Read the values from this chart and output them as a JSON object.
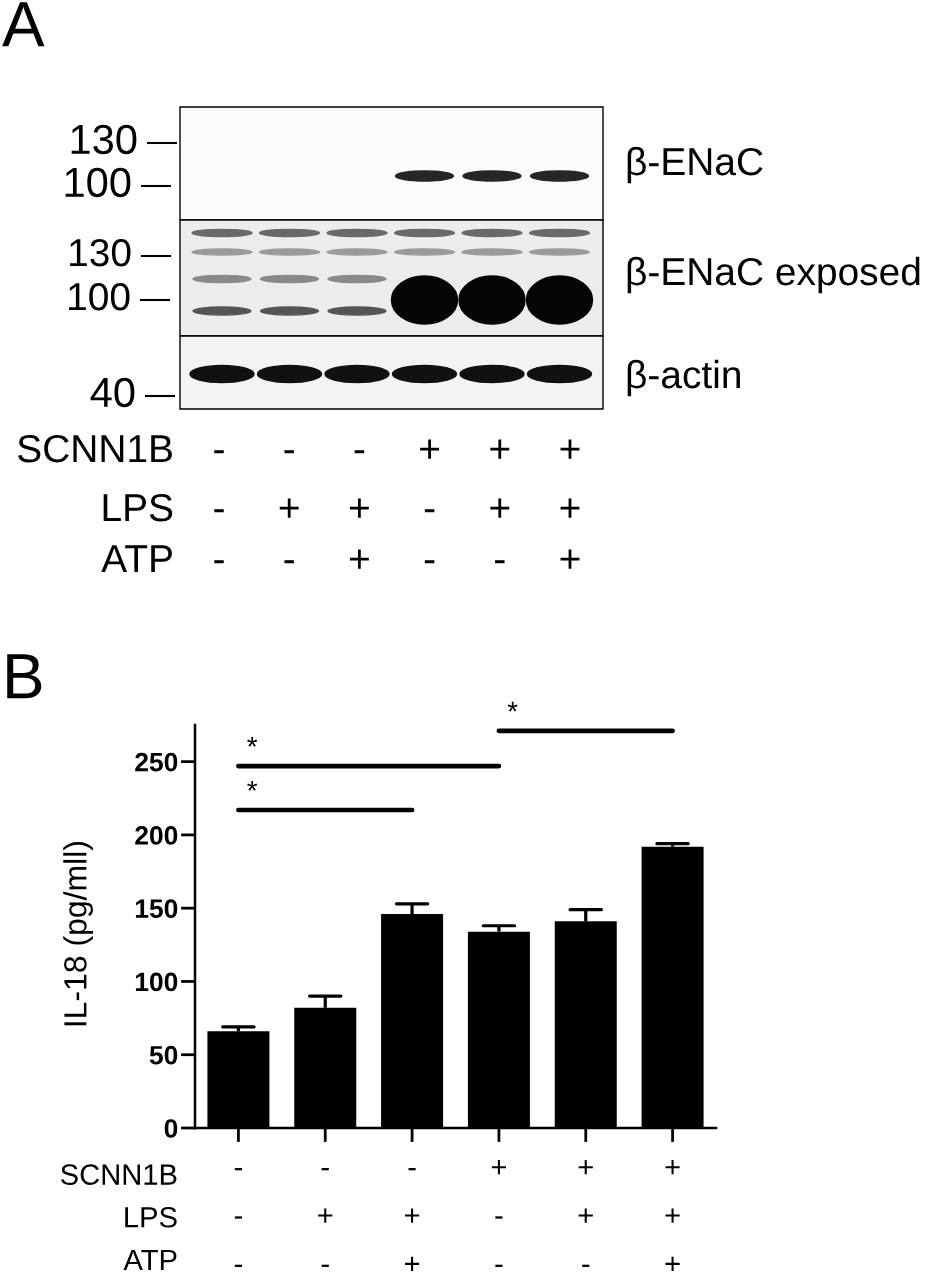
{
  "chart_data": [
    {
      "type": "other",
      "title": "A",
      "annotations": [
        "130",
        "100",
        "130",
        "100",
        "40",
        "β-ENaC",
        "β-ENaC exposed",
        "β-actin",
        "SCNN1B",
        "-",
        "-",
        "-",
        "+",
        "+",
        "+",
        "LPS",
        "-",
        "+",
        "+",
        "-",
        "+",
        "+",
        "ATP",
        "-",
        "-",
        "+",
        "-",
        "-",
        "+"
      ]
    },
    {
      "type": "bar",
      "title": "B",
      "ylabel": "IL-18 (pg/mll)",
      "categories": [
        "-\n-\n-",
        "-\n+\n-",
        "-\n+\n+",
        "+\n-\n-",
        "+\n+\n-",
        "+\n+\n+"
      ],
      "ylim": [
        0,
        275
      ],
      "yticks": [
        0,
        50,
        100,
        150,
        200,
        250
      ],
      "series": [
        {
          "type": "bar",
          "color": "#000000",
          "values": [
            66,
            82,
            146,
            134,
            141,
            192
          ],
          "errors": [
            [
              66,
              69
            ],
            [
              82,
              90
            ],
            [
              146,
              153
            ],
            [
              134,
              138
            ],
            [
              141,
              149
            ],
            [
              192,
              194
            ]
          ]
        },
        {
          "type": "line",
          "name": "*",
          "color": "#000000",
          "values": [
            247,
            247,
            247,
            247,
            null,
            null
          ]
        },
        {
          "type": "line",
          "name": "*",
          "color": "#000000",
          "values": [
            217,
            217,
            217,
            null,
            null,
            null
          ]
        },
        {
          "type": "line",
          "name": "*",
          "color": "#000000",
          "values": [
            null,
            null,
            null,
            271,
            271,
            271
          ]
        }
      ],
      "annotations": [
        "SCNN1B",
        "LPS",
        "ATP"
      ]
    }
  ]
}
